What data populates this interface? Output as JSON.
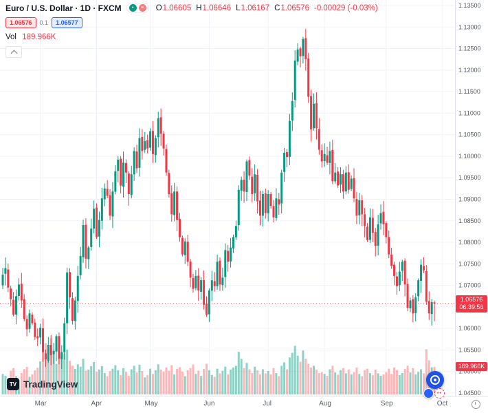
{
  "header": {
    "symbol_title": "Euro / U.S. Dollar · 1D · FXCM",
    "ohlc": {
      "labels": {
        "o": "O",
        "h": "H",
        "l": "L",
        "c": "C"
      },
      "open": "1.06605",
      "high": "1.06646",
      "low": "1.06167",
      "close": "1.06576",
      "change": "-0.00029 (-0.03%)"
    },
    "bid": "1.06576",
    "spread": "0.1",
    "ask": "1.06577",
    "vol_label": "Vol",
    "vol_value": "189.966K",
    "dots_icon_glyph": "≡"
  },
  "price_label": {
    "price": "1.06576",
    "countdown": "06:39:56"
  },
  "volume_axis_label": "189.966K",
  "logo": {
    "mark": "TV",
    "text": "TradingView"
  },
  "fab": {
    "red_dots": "••"
  },
  "chart_data": {
    "type": "candlestick",
    "title": "Euro / U.S. Dollar, 1D, FXCM",
    "legend_position": "top-left",
    "grid": true,
    "current_price": 1.06576,
    "current_volume_k": 189.966,
    "last_candle": {
      "open": 1.06605,
      "high": 1.06646,
      "low": 1.06167,
      "close": 1.06576
    },
    "colors": {
      "up": "#089981",
      "down": "#F23645",
      "vol_up": "rgba(8,153,129,0.45)",
      "vol_down": "rgba(247,124,128,0.55)",
      "grid": "#F0F3FA",
      "axis_text": "#555B66",
      "border": "#E0E3EB"
    },
    "y_axis": {
      "min": 1.045,
      "max": 1.135,
      "tick_step": 0.005,
      "ticks": [
        "1.13500",
        "1.13000",
        "1.12500",
        "1.12000",
        "1.11500",
        "1.11000",
        "1.10500",
        "1.10000",
        "1.09500",
        "1.09000",
        "1.08500",
        "1.08000",
        "1.07500",
        "1.07000",
        "1.06500",
        "1.06000",
        "1.05500",
        "1.05000",
        "1.04500"
      ]
    },
    "x_axis": {
      "total_slots": 166,
      "labels": [
        {
          "text": "Mar",
          "index": 14
        },
        {
          "text": "Apr",
          "index": 35
        },
        {
          "text": "May",
          "index": 55
        },
        {
          "text": "Jun",
          "index": 77
        },
        {
          "text": "Jul",
          "index": 99
        },
        {
          "text": "Aug",
          "index": 120
        },
        {
          "text": "Sep",
          "index": 143
        },
        {
          "text": "Oct",
          "index": 164
        }
      ]
    },
    "series": {
      "first_open": 1.07,
      "closes": [
        1.0725,
        1.074,
        1.0695,
        1.0668,
        1.0632,
        1.0675,
        1.0702,
        1.0665,
        1.0622,
        1.0598,
        1.0635,
        1.0612,
        1.058,
        1.0577,
        1.0602,
        1.0545,
        1.0528,
        1.0562,
        1.0538,
        1.0548,
        1.0582,
        1.053,
        1.0545,
        1.0612,
        1.073,
        1.0672,
        1.0618,
        1.0665,
        1.0722,
        1.0768,
        1.084,
        1.0762,
        1.0788,
        1.0832,
        1.0878,
        1.0812,
        1.0852,
        1.0902,
        1.0925,
        1.0908,
        1.0862,
        1.0918,
        1.0965,
        1.0992,
        1.0932,
        1.0985,
        1.0962,
        1.0912,
        1.0958,
        1.1012,
        1.0972,
        1.1042,
        1.1012,
        1.1035,
        1.1018,
        1.1058,
        1.1005,
        1.1042,
        1.1088,
        1.1052,
        1.1018,
        1.0962,
        1.0912,
        1.0865,
        1.0918,
        1.0852,
        1.0812,
        1.0772,
        1.0802,
        1.0755,
        1.0718,
        1.0692,
        1.0722,
        1.0688,
        1.0712,
        1.0655,
        1.0632,
        1.0688,
        1.0712,
        1.0698,
        1.0755,
        1.0702,
        1.0718,
        1.0782,
        1.0755,
        1.0788,
        1.0812,
        1.0838,
        1.0922,
        1.0945,
        1.0918,
        1.0988,
        1.0955,
        1.0912,
        1.0958,
        1.0895,
        1.0862,
        1.0912,
        1.0868,
        1.0912,
        1.0885,
        1.0858,
        1.0902,
        1.0888,
        1.0962,
        1.1008,
        1.0998,
        1.1082,
        1.1128,
        1.1222,
        1.1248,
        1.1232,
        1.1272,
        1.1225,
        1.1138,
        1.1062,
        1.1122,
        1.1065,
        1.1015,
        1.0988,
        1.1005,
        1.0985,
        1.1012,
        1.0942,
        1.0962,
        1.0932,
        1.0958,
        1.0918,
        1.0962,
        1.0922,
        1.0948,
        1.0902,
        1.0862,
        1.0898,
        1.0865,
        1.0838,
        1.0805,
        1.0858,
        1.0822,
        1.0792,
        1.0842,
        1.0868,
        1.0842,
        1.0812,
        1.0772,
        1.0745,
        1.0722,
        1.0698,
        1.0732,
        1.0755,
        1.0702,
        1.0648,
        1.0665,
        1.0635,
        1.0672,
        1.0712,
        1.0748,
        1.0735,
        1.0662,
        1.0635,
        1.0661,
        1.06576
      ],
      "volumes_k": [
        142,
        128,
        105,
        164,
        182,
        126,
        98,
        148,
        175,
        190,
        122,
        138,
        166,
        184,
        228,
        305,
        355,
        266,
        388,
        298,
        212,
        342,
        262,
        284,
        310,
        232,
        198,
        176,
        208,
        192,
        246,
        164,
        172,
        196,
        224,
        158,
        172,
        196,
        148,
        126,
        162,
        178,
        202,
        168,
        134,
        182,
        156,
        128,
        174,
        198,
        152,
        206,
        162,
        118,
        134,
        178,
        142,
        166,
        208,
        172,
        158,
        186,
        164,
        202,
        138,
        176,
        188,
        158,
        126,
        168,
        182,
        206,
        142,
        164,
        128,
        176,
        212,
        168,
        134,
        122,
        178,
        146,
        164,
        192,
        138,
        172,
        186,
        198,
        295,
        246,
        182,
        218,
        174,
        148,
        192,
        166,
        138,
        174,
        146,
        162,
        138,
        182,
        148,
        126,
        198,
        222,
        174,
        256,
        288,
        336,
        268,
        226,
        304,
        248,
        212,
        186,
        198,
        172,
        148,
        154,
        142,
        128,
        174,
        198,
        152,
        136,
        168,
        182,
        146,
        172,
        138,
        154,
        186,
        142,
        126,
        168,
        178,
        148,
        134,
        172,
        146,
        128,
        138,
        154,
        178,
        142,
        186,
        168,
        134,
        148,
        176,
        198,
        152,
        182,
        138,
        156,
        174,
        146,
        312,
        236,
        188,
        189.966
      ]
    }
  }
}
